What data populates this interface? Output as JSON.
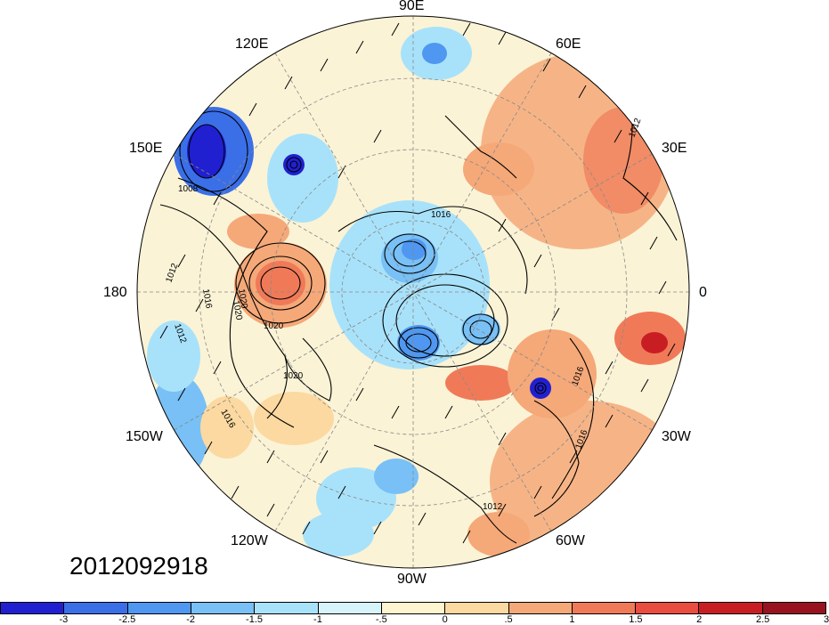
{
  "timestamp": "2012092918",
  "longitude_labels": [
    "90E",
    "120E",
    "60E",
    "150E",
    "30E",
    "180",
    "0",
    "150W",
    "30W",
    "120W",
    "60W",
    "90W"
  ],
  "contour_labels": [
    "1008",
    "1012",
    "1012",
    "1016",
    "1016",
    "1020",
    "1020",
    "1020",
    "1016",
    "1016",
    "1016",
    "1012",
    "1020",
    "1012"
  ],
  "colorbar": {
    "colors": [
      "#2020d0",
      "#3a6fe8",
      "#4f97f0",
      "#78c0f5",
      "#a8e2fa",
      "#d8f4fb",
      "#fff6d0",
      "#fbd9a0",
      "#f5a878",
      "#f07a58",
      "#e84d40",
      "#c91d24",
      "#98121f"
    ],
    "tick_labels": [
      "-3",
      "-2.5",
      "-2",
      "-1.5",
      "-1",
      "-.5",
      "0",
      ".5",
      "1",
      "1.5",
      "2",
      "2.5",
      "3"
    ]
  },
  "colors": {
    "background": "#ffffff",
    "map_base": "#fbf3d6",
    "contour": "#000000"
  }
}
